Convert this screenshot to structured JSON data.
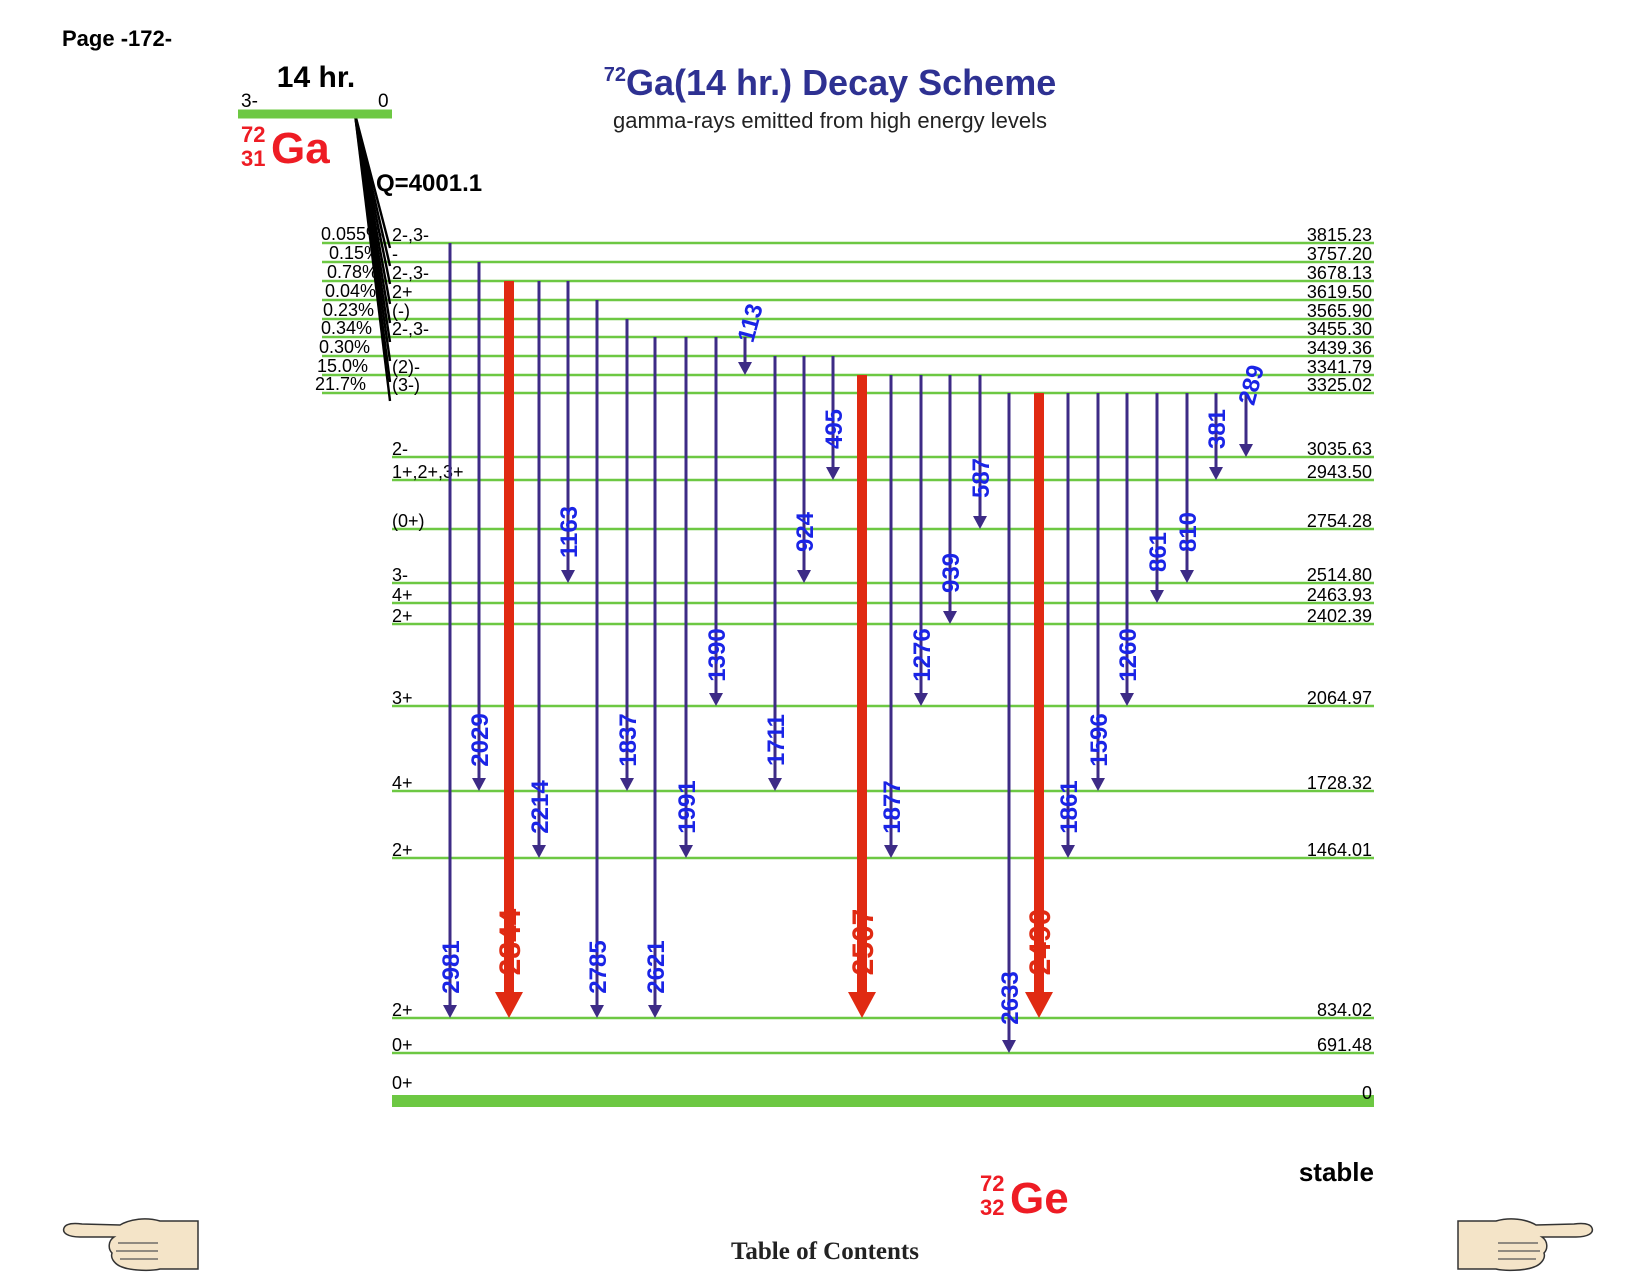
{
  "page_label": "Page -172-",
  "title": {
    "sup": "72",
    "main": "Ga(14 hr.) Decay Scheme"
  },
  "subtitle": "gamma-rays emitted from high energy levels",
  "parent": {
    "halflife": "14 hr.",
    "spin_left": "3-",
    "spin_right": "0",
    "mass": "72",
    "z": "31",
    "symbol": "Ga",
    "q_value": "Q=4001.1"
  },
  "daughter": {
    "mass": "72",
    "z": "32",
    "symbol": "Ge",
    "stability": "stable"
  },
  "footer": {
    "toc": "Table of Contents",
    "prev_icon": "pointing-hand-left-icon",
    "next_icon": "pointing-hand-right-icon"
  },
  "colors": {
    "level": "#6dc843",
    "gamma": "#3d2b86",
    "gamma_strong": "#e02a12",
    "label_blue": "#1a24e6",
    "label_red": "#e02a12",
    "title": "#2e3192",
    "nucleus": "#ee1c24"
  },
  "chart_data": {
    "type": "decay-scheme",
    "levels": [
      {
        "energy": 3815.23,
        "label": "3815.23",
        "spin": "2-,3-",
        "feed": "0.055%"
      },
      {
        "energy": 3757.2,
        "label": "3757.20",
        "spin": "-",
        "feed": "0.15%"
      },
      {
        "energy": 3678.13,
        "label": "3678.13",
        "spin": "2-,3-",
        "feed": "0.78%"
      },
      {
        "energy": 3619.5,
        "label": "3619.50",
        "spin": "2+",
        "feed": "0.04%"
      },
      {
        "energy": 3565.9,
        "label": "3565.90",
        "spin": "(-)",
        "feed": "0.23%"
      },
      {
        "energy": 3455.3,
        "label": "3455.30",
        "spin": "2-,3-",
        "feed": "0.34%"
      },
      {
        "energy": 3439.36,
        "label": "3439.36",
        "spin": "",
        "feed": "0.30%"
      },
      {
        "energy": 3341.79,
        "label": "3341.79",
        "spin": "(2)-",
        "feed": "15.0%"
      },
      {
        "energy": 3325.02,
        "label": "3325.02",
        "spin": "(3-)",
        "feed": "21.7%"
      },
      {
        "energy": 3035.63,
        "label": "3035.63",
        "spin": "2-",
        "feed": ""
      },
      {
        "energy": 2943.5,
        "label": "2943.50",
        "spin": "1+,2+,3+",
        "feed": ""
      },
      {
        "energy": 2754.28,
        "label": "2754.28",
        "spin": "(0+)",
        "feed": ""
      },
      {
        "energy": 2514.8,
        "label": "2514.80",
        "spin": "3-",
        "feed": ""
      },
      {
        "energy": 2463.93,
        "label": "2463.93",
        "spin": "4+",
        "feed": ""
      },
      {
        "energy": 2402.39,
        "label": "2402.39",
        "spin": "2+",
        "feed": ""
      },
      {
        "energy": 2064.97,
        "label": "2064.97",
        "spin": "3+",
        "feed": ""
      },
      {
        "energy": 1728.32,
        "label": "1728.32",
        "spin": "4+",
        "feed": ""
      },
      {
        "energy": 1464.01,
        "label": "1464.01",
        "spin": "2+",
        "feed": ""
      },
      {
        "energy": 834.02,
        "label": "834.02",
        "spin": "2+",
        "feed": ""
      },
      {
        "energy": 691.48,
        "label": "691.48",
        "spin": "0+",
        "feed": ""
      },
      {
        "energy": 0,
        "label": "0",
        "spin": "0+",
        "feed": ""
      }
    ],
    "gammas": [
      {
        "label": "2981",
        "from": 3815.23,
        "to": 834.02,
        "strong": false
      },
      {
        "label": "2029",
        "from": 3757.2,
        "to": 1728.32,
        "strong": false
      },
      {
        "label": "2844",
        "from": 3678.13,
        "to": 834.02,
        "strong": true
      },
      {
        "label": "2214",
        "from": 3678.13,
        "to": 1464.01,
        "strong": false
      },
      {
        "label": "1163",
        "from": 3678.13,
        "to": 2514.8,
        "strong": false
      },
      {
        "label": "2785",
        "from": 3619.5,
        "to": 834.02,
        "strong": false
      },
      {
        "label": "1837",
        "from": 3565.9,
        "to": 1728.32,
        "strong": false
      },
      {
        "label": "2621",
        "from": 3455.3,
        "to": 834.02,
        "strong": false
      },
      {
        "label": "1991",
        "from": 3455.3,
        "to": 1464.01,
        "strong": false
      },
      {
        "label": "1390",
        "from": 3455.3,
        "to": 2064.97,
        "strong": false
      },
      {
        "label": "113",
        "from": 3455.3,
        "to": 3341.79,
        "strong": false
      },
      {
        "label": "1711",
        "from": 3439.36,
        "to": 1728.32,
        "strong": false
      },
      {
        "label": "924",
        "from": 3439.36,
        "to": 2514.8,
        "strong": false
      },
      {
        "label": "495",
        "from": 3439.36,
        "to": 2943.5,
        "strong": false
      },
      {
        "label": "2507",
        "from": 3341.79,
        "to": 834.02,
        "strong": true
      },
      {
        "label": "1877",
        "from": 3341.79,
        "to": 1464.01,
        "strong": false
      },
      {
        "label": "1276",
        "from": 3341.79,
        "to": 2064.97,
        "strong": false
      },
      {
        "label": "939",
        "from": 3341.79,
        "to": 2402.39,
        "strong": false
      },
      {
        "label": "587",
        "from": 3341.79,
        "to": 2754.28,
        "strong": false
      },
      {
        "label": "2633",
        "from": 3325.02,
        "to": 691.48,
        "strong": false
      },
      {
        "label": "2490",
        "from": 3325.02,
        "to": 834.02,
        "strong": true
      },
      {
        "label": "1861",
        "from": 3325.02,
        "to": 1464.01,
        "strong": false
      },
      {
        "label": "1596",
        "from": 3325.02,
        "to": 1728.32,
        "strong": false
      },
      {
        "label": "1260",
        "from": 3325.02,
        "to": 2064.97,
        "strong": false
      },
      {
        "label": "861",
        "from": 3325.02,
        "to": 2463.93,
        "strong": false
      },
      {
        "label": "810",
        "from": 3325.02,
        "to": 2514.8,
        "strong": false
      },
      {
        "label": "381",
        "from": 3325.02,
        "to": 2943.5,
        "strong": false
      },
      {
        "label": "289",
        "from": 3325.02,
        "to": 3035.63,
        "strong": false
      }
    ]
  }
}
